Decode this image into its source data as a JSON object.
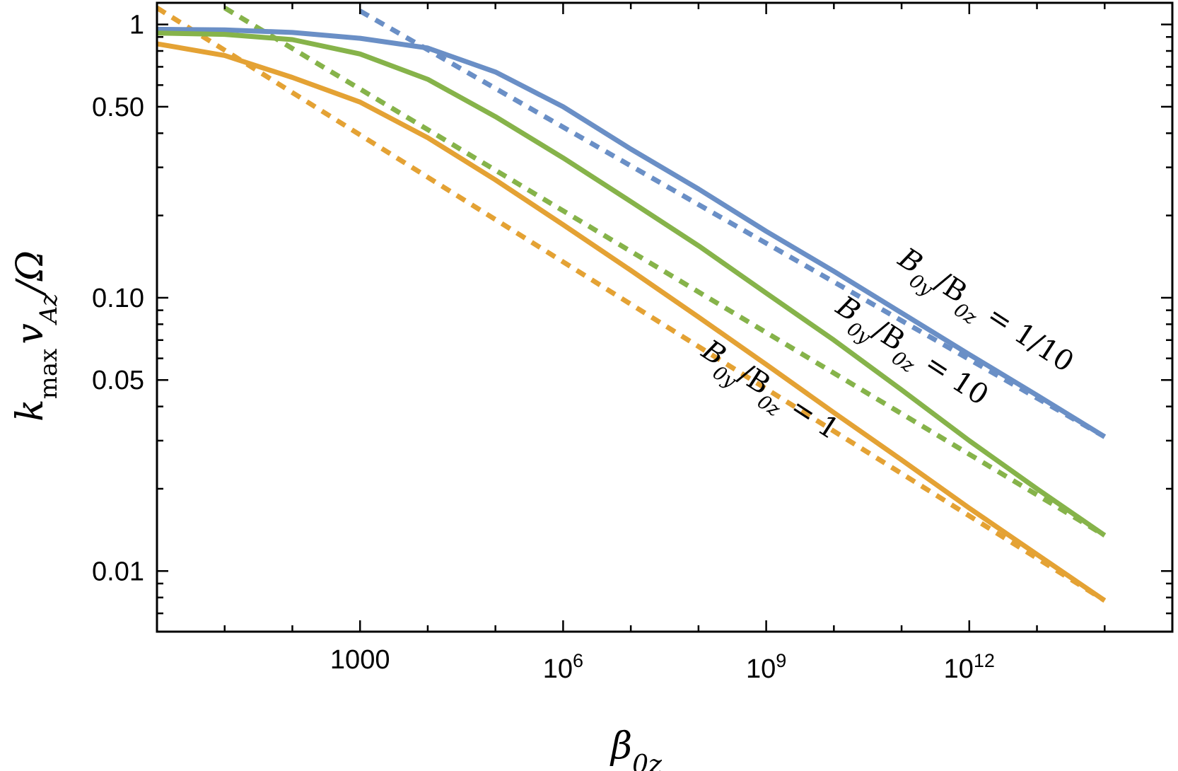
{
  "chart_data": {
    "type": "line",
    "xscale": "log",
    "yscale": "log",
    "xlim": [
      1,
      1000000000000000.0
    ],
    "ylim": [
      0.006,
      1.2
    ],
    "grid": false,
    "legend": "none",
    "x_ticks": [
      {
        "value": 1000,
        "label": "1000"
      },
      {
        "value": 1000000.0,
        "label": "10",
        "exp": "6"
      },
      {
        "value": 1000000000.0,
        "label": "10",
        "exp": "9"
      },
      {
        "value": 1000000000000.0,
        "label": "10",
        "exp": "12"
      }
    ],
    "y_ticks": [
      {
        "value": 1,
        "label": "1"
      },
      {
        "value": 0.5,
        "label": "0.50"
      },
      {
        "value": 0.1,
        "label": "0.10"
      },
      {
        "value": 0.05,
        "label": "0.05"
      },
      {
        "value": 0.01,
        "label": "0.01"
      }
    ],
    "xlabel": {
      "main": "β",
      "sub": "0z"
    },
    "ylabel": {
      "k": "k",
      "ksub": "max",
      "v": "v",
      "vsub": "Az",
      "rest": "/Ω"
    },
    "series": [
      {
        "name": "B0y/B0z = 1/10",
        "color": "#6a8fc6",
        "x": [
          1,
          10,
          100,
          1000,
          10000,
          100000,
          1000000.0,
          10000000.0,
          100000000.0,
          1000000000.0,
          10000000000.0,
          100000000000.0,
          1000000000000.0,
          10000000000000.0,
          100000000000000.0
        ],
        "y": [
          0.96,
          0.955,
          0.935,
          0.89,
          0.82,
          0.67,
          0.5,
          0.35,
          0.25,
          0.175,
          0.125,
          0.088,
          0.062,
          0.044,
          0.031
        ],
        "asymptote": {
          "x": [
            1000,
            100000000000000.0
          ],
          "y": [
            1.12,
            0.031
          ]
        }
      },
      {
        "name": "B0y/B0z = 10",
        "color": "#86b34a",
        "x": [
          1,
          10,
          100,
          1000,
          10000,
          100000,
          1000000.0,
          10000000.0,
          100000000.0,
          1000000000.0,
          10000000000.0,
          100000000000.0,
          1000000000000.0,
          10000000000000.0,
          100000000000000.0
        ],
        "y": [
          0.93,
          0.92,
          0.88,
          0.78,
          0.63,
          0.46,
          0.325,
          0.225,
          0.155,
          0.104,
          0.07,
          0.046,
          0.03,
          0.02,
          0.0135
        ],
        "asymptote": {
          "x": [
            10,
            100000000000000.0
          ],
          "y": [
            1.15,
            0.0135
          ]
        }
      },
      {
        "name": "B0y/B0z = 1",
        "color": "#e4a234",
        "x": [
          1,
          10,
          100,
          1000,
          10000,
          100000,
          1000000.0,
          10000000.0,
          100000000.0,
          1000000000.0,
          10000000000.0,
          100000000000.0,
          1000000000000.0,
          10000000000000.0,
          100000000000000.0
        ],
        "y": [
          0.85,
          0.77,
          0.64,
          0.52,
          0.385,
          0.27,
          0.185,
          0.126,
          0.085,
          0.057,
          0.038,
          0.0255,
          0.017,
          0.0115,
          0.0078
        ],
        "asymptote": {
          "x": [
            1,
            100000000000000.0
          ],
          "y": [
            1.15,
            0.0078
          ]
        }
      }
    ],
    "annotations": [
      {
        "series": 0,
        "parts": [
          "B",
          "0y",
          "/B",
          "0z",
          " = 1/10"
        ]
      },
      {
        "series": 1,
        "parts": [
          "B",
          "0y",
          "/B",
          "0z",
          " = 10"
        ]
      },
      {
        "series": 2,
        "parts": [
          "B",
          "0y",
          "/B",
          "0z",
          " = 1"
        ]
      }
    ]
  }
}
